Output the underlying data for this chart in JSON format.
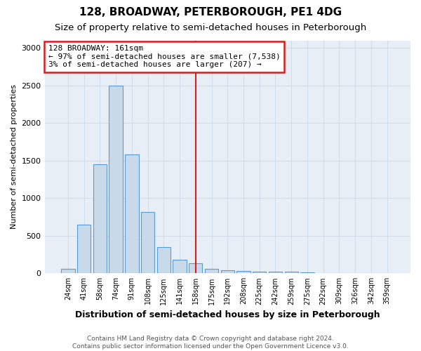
{
  "title": "128, BROADWAY, PETERBOROUGH, PE1 4DG",
  "subtitle": "Size of property relative to semi-detached houses in Peterborough",
  "xlabel": "Distribution of semi-detached houses by size in Peterborough",
  "ylabel": "Number of semi-detached properties",
  "categories": [
    "24sqm",
    "41sqm",
    "58sqm",
    "74sqm",
    "91sqm",
    "108sqm",
    "125sqm",
    "141sqm",
    "158sqm",
    "175sqm",
    "192sqm",
    "208sqm",
    "225sqm",
    "242sqm",
    "259sqm",
    "275sqm",
    "292sqm",
    "309sqm",
    "326sqm",
    "342sqm",
    "359sqm"
  ],
  "values": [
    55,
    650,
    1450,
    2500,
    1580,
    820,
    350,
    180,
    130,
    60,
    40,
    30,
    25,
    20,
    20,
    15,
    0,
    0,
    0,
    0,
    0
  ],
  "bar_color": "#c8daea",
  "bar_edge_color": "#5b9bd5",
  "grid_color": "#d0dce8",
  "plot_bg_color": "#e8eef5",
  "fig_bg_color": "#ffffff",
  "vline_x_index": 8,
  "vline_color": "#cc2222",
  "annotation_text": "128 BROADWAY: 161sqm\n← 97% of semi-detached houses are smaller (7,538)\n3% of semi-detached houses are larger (207) →",
  "annotation_box_color": "#ffffff",
  "annotation_box_edge": "#cc2222",
  "footer": "Contains HM Land Registry data © Crown copyright and database right 2024.\nContains public sector information licensed under the Open Government Licence v3.0.",
  "title_fontsize": 11,
  "subtitle_fontsize": 9.5,
  "ylim": [
    0,
    3100
  ],
  "yticks": [
    0,
    500,
    1000,
    1500,
    2000,
    2500,
    3000
  ]
}
